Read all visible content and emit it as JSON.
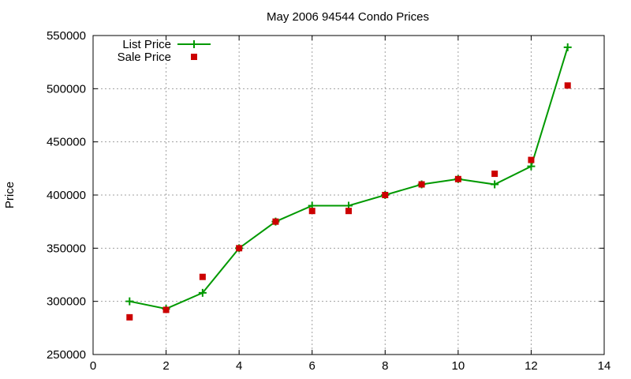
{
  "chart_data": {
    "type": "line",
    "title": "May 2006 94544 Condo Prices",
    "xlabel": "",
    "ylabel": "Price",
    "xlim": [
      0,
      14
    ],
    "ylim": [
      250000,
      550000
    ],
    "xticks": [
      0,
      2,
      4,
      6,
      8,
      10,
      12,
      14
    ],
    "yticks": [
      250000,
      300000,
      350000,
      400000,
      450000,
      500000,
      550000
    ],
    "grid": true,
    "legend_position": "top-left",
    "series": [
      {
        "name": "List Price",
        "style": "line+cross",
        "color": "#009900",
        "x": [
          1,
          2,
          3,
          4,
          5,
          6,
          7,
          8,
          9,
          10,
          11,
          12,
          13
        ],
        "y": [
          300000,
          293000,
          308000,
          350000,
          375000,
          390000,
          390000,
          400000,
          410000,
          415000,
          410000,
          427000,
          539000
        ]
      },
      {
        "name": "Sale Price",
        "style": "square-marker",
        "color": "#cc0000",
        "x": [
          1,
          2,
          3,
          4,
          5,
          6,
          7,
          8,
          9,
          10,
          11,
          12,
          13
        ],
        "y": [
          285000,
          292000,
          323000,
          350000,
          375000,
          385000,
          385000,
          400000,
          410000,
          415000,
          420000,
          433000,
          503000
        ]
      }
    ]
  }
}
